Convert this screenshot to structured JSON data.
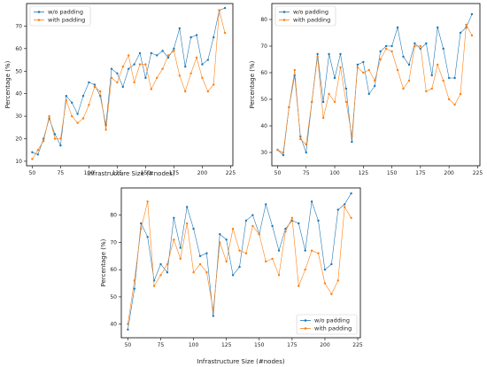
{
  "chart_data": [
    {
      "type": "line",
      "xlabel": "Infrastructure Size (#nodes)",
      "ylabel": "Percentage (%)",
      "xlim": [
        45,
        227
      ],
      "ylim": [
        8,
        80
      ],
      "xticks": [
        50,
        75,
        100,
        125,
        150,
        175,
        200,
        225
      ],
      "yticks": [
        10,
        20,
        30,
        40,
        50,
        60,
        70
      ],
      "grid": false,
      "legend": "top-left",
      "x": [
        50,
        55,
        60,
        65,
        70,
        75,
        80,
        85,
        90,
        95,
        100,
        105,
        110,
        115,
        120,
        125,
        130,
        135,
        140,
        145,
        150,
        155,
        160,
        165,
        170,
        175,
        180,
        185,
        190,
        195,
        200,
        205,
        210,
        215,
        220
      ],
      "series": [
        {
          "name": "w/o padding",
          "color": "#1f77b4",
          "values": [
            14,
            13,
            20,
            29,
            22,
            17,
            39,
            36,
            31,
            39,
            45,
            44,
            39,
            26,
            51,
            49,
            43,
            51,
            53,
            58,
            47,
            58,
            57,
            59,
            56,
            60,
            69,
            52,
            65,
            66,
            53,
            55,
            65,
            77,
            78
          ]
        },
        {
          "name": "with padding",
          "color": "#ff7f0e",
          "values": [
            11,
            15,
            19,
            30,
            20,
            20,
            37,
            30,
            27,
            29,
            35,
            43,
            41,
            24,
            47,
            45,
            52,
            57,
            45,
            53,
            53,
            42,
            47,
            51,
            57,
            59,
            48,
            41,
            49,
            56,
            47,
            41,
            44,
            77,
            67
          ]
        }
      ]
    },
    {
      "type": "line",
      "xlabel": "",
      "ylabel": "Percentage (%)",
      "xlim": [
        45,
        227
      ],
      "ylim": [
        25,
        86
      ],
      "xticks": [
        50,
        75,
        100,
        125,
        150,
        175,
        200,
        225
      ],
      "yticks": [
        30,
        40,
        50,
        60,
        70,
        80
      ],
      "grid": false,
      "legend": "top-left",
      "x": [
        50,
        55,
        60,
        65,
        70,
        75,
        80,
        85,
        90,
        95,
        100,
        105,
        110,
        115,
        120,
        125,
        130,
        135,
        140,
        145,
        150,
        155,
        160,
        165,
        170,
        175,
        180,
        185,
        190,
        195,
        200,
        205,
        210,
        215,
        220
      ],
      "series": [
        {
          "name": "w/o padding",
          "color": "#1f77b4",
          "values": [
            31,
            29,
            47,
            59,
            36,
            30,
            49,
            67,
            49,
            67,
            58,
            67,
            54,
            34,
            63,
            64,
            52,
            55,
            68,
            70,
            70,
            77,
            66,
            63,
            71,
            69,
            71,
            59,
            77,
            69,
            58,
            58,
            75,
            77,
            82
          ]
        },
        {
          "name": "with padding",
          "color": "#ff7f0e",
          "values": [
            31,
            30,
            47,
            61,
            35,
            33,
            49,
            66,
            43,
            52,
            49,
            62,
            49,
            36,
            62,
            60,
            61,
            57,
            65,
            69,
            68,
            61,
            54,
            57,
            70,
            70,
            53,
            54,
            63,
            57,
            50,
            48,
            52,
            78,
            74
          ]
        }
      ]
    },
    {
      "type": "line",
      "xlabel": "Infrastructure Size (#nodes)",
      "ylabel": "Percentage (%)",
      "xlim": [
        45,
        227
      ],
      "ylim": [
        35,
        90
      ],
      "xticks": [
        50,
        75,
        100,
        125,
        150,
        175,
        200,
        225
      ],
      "yticks": [
        40,
        50,
        60,
        70,
        80
      ],
      "grid": false,
      "legend": "bottom-right",
      "x": [
        50,
        55,
        60,
        65,
        70,
        75,
        80,
        85,
        90,
        95,
        100,
        105,
        110,
        115,
        120,
        125,
        130,
        135,
        140,
        145,
        150,
        155,
        160,
        165,
        170,
        175,
        180,
        185,
        190,
        195,
        200,
        205,
        210,
        215,
        220
      ],
      "series": [
        {
          "name": "w/o padding",
          "color": "#1f77b4",
          "values": [
            38,
            53,
            77,
            72,
            56,
            62,
            59,
            79,
            68,
            83,
            75,
            65,
            66,
            43,
            73,
            71,
            58,
            61,
            78,
            80,
            73,
            84,
            76,
            67,
            75,
            78,
            77,
            67,
            85,
            78,
            60,
            62,
            82,
            84,
            88
          ]
        },
        {
          "name": "with padding",
          "color": "#ff7f0e",
          "values": [
            40,
            56,
            75,
            85,
            54,
            58,
            62,
            71,
            64,
            77,
            59,
            62,
            59,
            45,
            70,
            63,
            75,
            67,
            66,
            76,
            73,
            63,
            64,
            58,
            74,
            79,
            54,
            60,
            67,
            66,
            55,
            51,
            56,
            83,
            79
          ]
        }
      ]
    }
  ]
}
